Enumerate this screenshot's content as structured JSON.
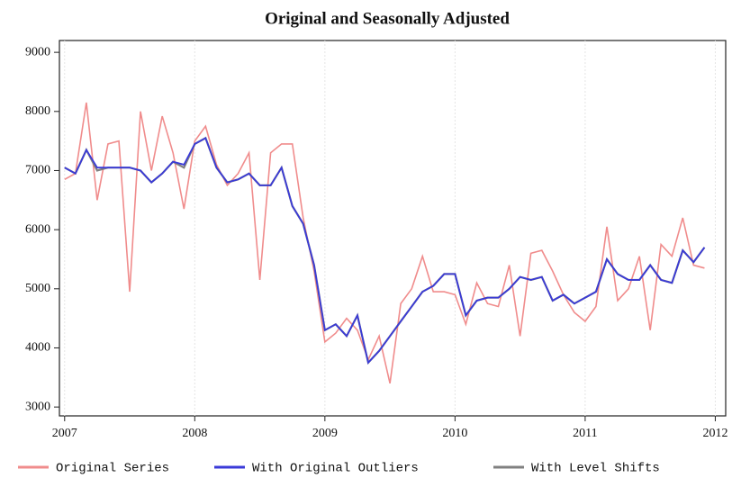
{
  "chart_data": {
    "type": "line",
    "title": "Original and Seasonally Adjusted",
    "x": [
      2007,
      2007.083,
      2007.167,
      2007.25,
      2007.333,
      2007.417,
      2007.5,
      2007.583,
      2007.667,
      2007.75,
      2007.833,
      2007.917,
      2008,
      2008.083,
      2008.167,
      2008.25,
      2008.333,
      2008.417,
      2008.5,
      2008.583,
      2008.667,
      2008.75,
      2008.833,
      2008.917,
      2009,
      2009.083,
      2009.167,
      2009.25,
      2009.333,
      2009.417,
      2009.5,
      2009.583,
      2009.667,
      2009.75,
      2009.833,
      2009.917,
      2010,
      2010.083,
      2010.167,
      2010.25,
      2010.333,
      2010.417,
      2010.5,
      2010.583,
      2010.667,
      2010.75,
      2010.833,
      2010.917,
      2011,
      2011.083,
      2011.167,
      2011.25,
      2011.333,
      2011.417,
      2011.5,
      2011.583,
      2011.667,
      2011.75,
      2011.833,
      2011.917
    ],
    "series": [
      {
        "name": "Original Series",
        "color": "#f08c8c",
        "width": 1.6,
        "values": [
          6850,
          6950,
          8150,
          6500,
          7450,
          7500,
          4950,
          8000,
          7000,
          7920,
          7300,
          6350,
          7500,
          7750,
          7100,
          6750,
          6950,
          7300,
          5150,
          7300,
          7450,
          7450,
          6200,
          5300,
          4100,
          4250,
          4500,
          4300,
          3800,
          4200,
          3400,
          4750,
          5000,
          5550,
          4950,
          4950,
          4900,
          4400,
          5100,
          4750,
          4700,
          5400,
          4200,
          5600,
          5650,
          5300,
          4900,
          4600,
          4450,
          4700,
          6050,
          4800,
          5000,
          5550,
          4300,
          5750,
          5550,
          6200,
          5400,
          5350
        ]
      },
      {
        "name": "With Level Shifts",
        "color": "#808080",
        "width": 2.2,
        "values": [
          7050,
          6950,
          7350,
          7000,
          7050,
          7050,
          7050,
          7000,
          6800,
          6950,
          7150,
          7050,
          7450,
          7550,
          7050,
          6800,
          6850,
          6950,
          6750,
          6750,
          7050,
          6400,
          6100,
          5400,
          4300,
          4400,
          4200,
          4550,
          3750,
          3950,
          4200,
          4450,
          4700,
          4950,
          5050,
          5250,
          5250,
          4550,
          4800,
          4850,
          4850,
          5000,
          5200,
          5150,
          5200,
          4800,
          4900,
          4750,
          4850,
          4950,
          5500,
          5250,
          5150,
          5150,
          5400,
          5150,
          5100,
          5650,
          5450,
          5700
        ]
      },
      {
        "name": "With Original Outliers",
        "color": "#3a3ad8",
        "width": 1.8,
        "values": [
          7050,
          6950,
          7350,
          7050,
          7050,
          7050,
          7050,
          7000,
          6800,
          6950,
          7150,
          7100,
          7450,
          7550,
          7050,
          6800,
          6850,
          6950,
          6750,
          6750,
          7050,
          6400,
          6100,
          5400,
          4300,
          4400,
          4200,
          4550,
          3750,
          3950,
          4200,
          4450,
          4700,
          4950,
          5050,
          5250,
          5250,
          4550,
          4800,
          4850,
          4850,
          5000,
          5200,
          5150,
          5200,
          4800,
          4900,
          4750,
          4850,
          4950,
          5500,
          5250,
          5150,
          5150,
          5400,
          5150,
          5100,
          5650,
          5450,
          5700
        ]
      }
    ],
    "legend_order": [
      "Original Series",
      "With Original Outliers",
      "With Level Shifts"
    ],
    "xlim": [
      2006.96,
      2012.08
    ],
    "ylim": [
      2850,
      9200
    ],
    "xticks": [
      2007,
      2008,
      2009,
      2010,
      2011,
      2012
    ],
    "yticks": [
      3000,
      4000,
      5000,
      6000,
      7000,
      8000,
      9000
    ],
    "grid": "x",
    "legend": "bottom"
  }
}
